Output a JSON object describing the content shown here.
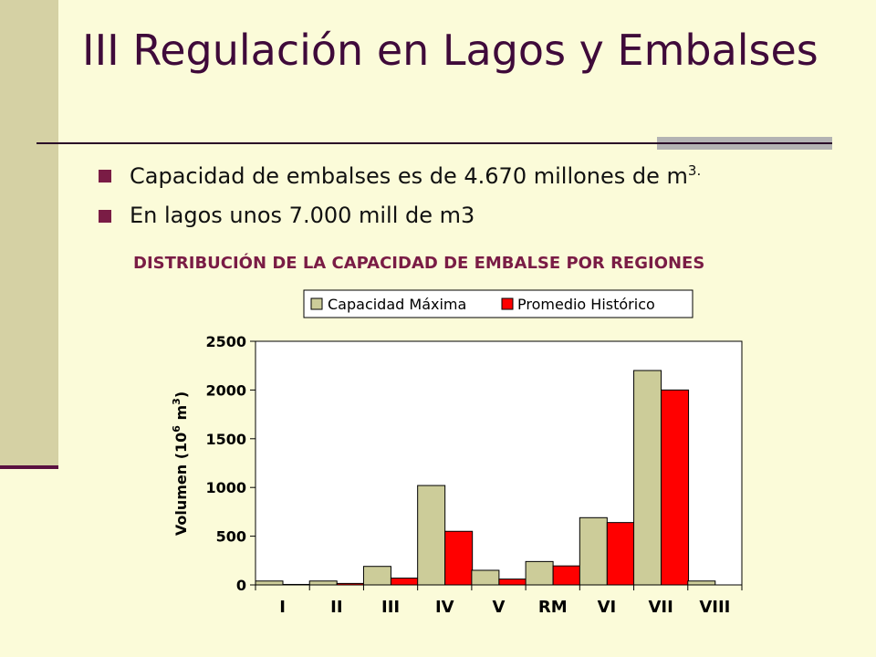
{
  "slide": {
    "title": "III Regulación en Lagos y Embalses",
    "bullets": [
      {
        "text": "Capacidad de embalses es de 4.670 millones de m",
        "sup": "3."
      },
      {
        "text": "En lagos unos 7.000 mill de m3",
        "sup": ""
      }
    ],
    "chart_heading": "DISTRIBUCIÓN DE LA CAPACIDAD DE EMBALSE POR REGIONES"
  },
  "colors": {
    "title": "#3f0a3a",
    "accent": "#7a1c45",
    "background": "#fbfbd9",
    "series_capacidad": "#cccc99",
    "series_promedio": "#ff0000"
  },
  "chart_data": {
    "type": "bar",
    "categories": [
      "I",
      "II",
      "III",
      "IV",
      "V",
      "RM",
      "VI",
      "VII",
      "VIII"
    ],
    "series": [
      {
        "name": "Capacidad Máxima",
        "values": [
          40,
          40,
          190,
          1020,
          150,
          240,
          690,
          2200,
          40
        ]
      },
      {
        "name": "Promedio Histórico",
        "values": [
          5,
          15,
          70,
          550,
          60,
          195,
          640,
          2000,
          0
        ]
      }
    ],
    "ylabel_main": "Volumen (10",
    "ylabel_sup": "6",
    "ylabel_unit": " m",
    "ylabel_sup2": "3",
    "ylabel_close": ")",
    "ylim": [
      0,
      2500
    ],
    "yticks": [
      "0",
      "500",
      "1000",
      "1500",
      "2000",
      "2500"
    ],
    "legend_position": "top",
    "grid": false
  }
}
